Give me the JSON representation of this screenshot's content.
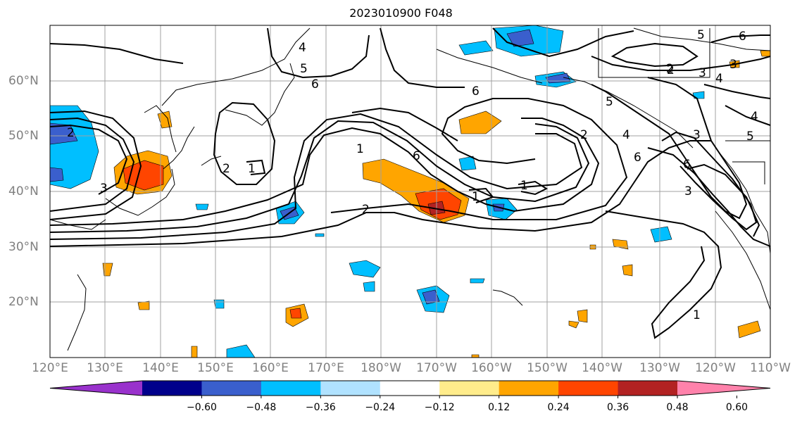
{
  "title": "2023010900 F048",
  "map": {
    "lon_labels": [
      "120°E",
      "130°E",
      "140°E",
      "150°E",
      "160°E",
      "170°E",
      "180°W",
      "170°W",
      "160°W",
      "150°W",
      "140°W",
      "130°W",
      "120°W",
      "110°W"
    ],
    "lat_labels": [
      "20°N",
      "30°N",
      "40°N",
      "50°N",
      "60°N"
    ],
    "contour_labels": [
      "2",
      "3",
      "4",
      "5",
      "6",
      "2",
      "1",
      "2",
      "6",
      "2",
      "1",
      "1",
      "1",
      "2",
      "3",
      "4",
      "5",
      "6",
      "2",
      "3",
      "4",
      "5",
      "6",
      "6",
      "3",
      "5",
      "4",
      "3",
      "6",
      "1"
    ]
  },
  "colorbar": {
    "colors": [
      "#9932cc",
      "#00008b",
      "#3a5fcd",
      "#00bfff",
      "#b0e2ff",
      "#ffffff",
      "#ffec8b",
      "#ffa500",
      "#ff4500",
      "#b22222",
      "#ff82ab"
    ],
    "tick_labels": [
      "−0.60",
      "−0.48",
      "−0.36",
      "−0.24",
      "−0.12",
      "0.12",
      "0.24",
      "0.36",
      "0.48",
      "0.60"
    ]
  },
  "colors": {
    "frame": "#000000",
    "grid": "#a0a0a0",
    "contour": "#000000",
    "coast": "#000000",
    "tick_text": "#808080"
  }
}
